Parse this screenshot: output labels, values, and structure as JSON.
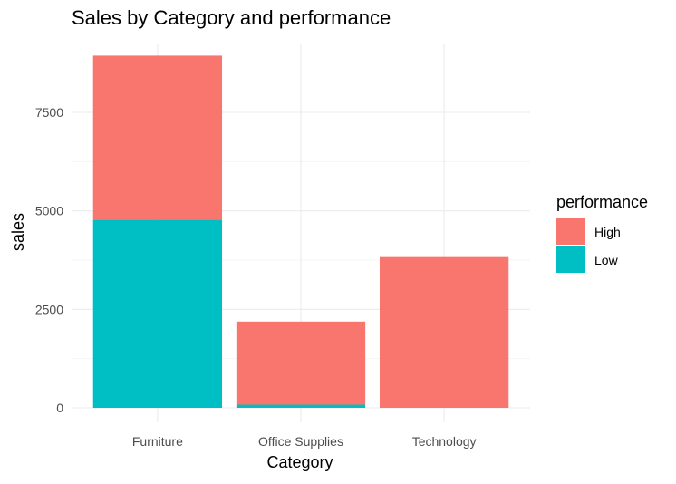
{
  "colors": {
    "background": "#ffffff",
    "high": "#F8766D",
    "low": "#00BFC4"
  },
  "chart_data": {
    "type": "bar",
    "stacked": true,
    "title": "Sales by Category and performance",
    "xlabel": "Category",
    "ylabel": "sales",
    "categories": [
      "Furniture",
      "Office Supplies",
      "Technology"
    ],
    "series": [
      {
        "name": "Low",
        "values": [
          4780,
          80,
          0
        ],
        "color": "#00BFC4"
      },
      {
        "name": "High",
        "values": [
          4160,
          2110,
          3850
        ],
        "color": "#F8766D"
      }
    ],
    "ylim": [
      0,
      9400
    ],
    "yticks": [
      0,
      2500,
      5000,
      7500
    ],
    "ytick_labels": [
      "0",
      "2500",
      "5000",
      "7500"
    ],
    "grid": true,
    "legend": {
      "title": "performance",
      "placement": "right",
      "entries": [
        {
          "label": "High",
          "color": "#F8766D"
        },
        {
          "label": "Low",
          "color": "#00BFC4"
        }
      ]
    }
  }
}
